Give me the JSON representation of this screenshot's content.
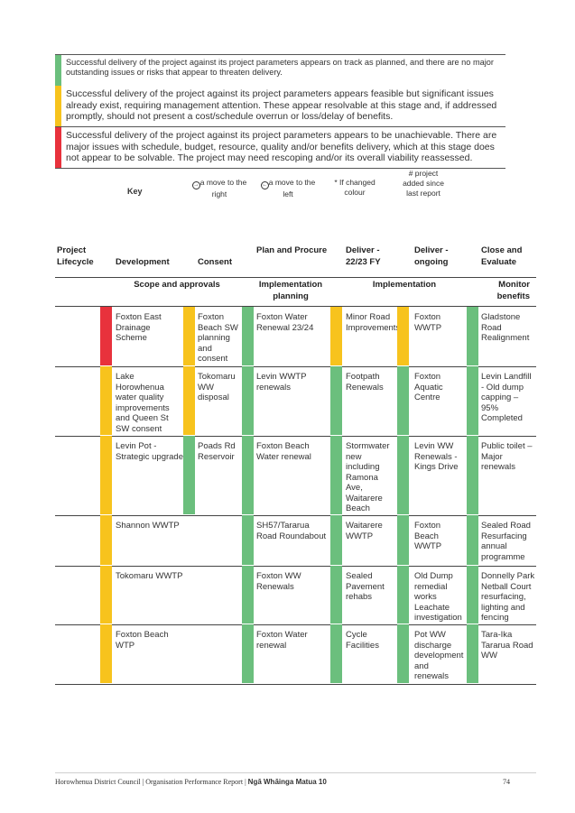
{
  "legend": {
    "green_text": "Successful delivery of the project against its project parameters appears on track as planned, and there are no major outstanding issues or risks that appear to threaten delivery.",
    "amber_text": "Successful delivery of the project against its project parameters appears feasible but significant issues already exist, requiring management attention. These appear resolvable at this stage and, if addressed promptly, should not present a cost/schedule overrun or loss/delay of benefits.",
    "red_text": "Successful delivery of the project against its project parameters appears to be unachievable. There are major issues with schedule, budget, resource, quality and/or benefits delivery, which at this stage does not appear to be solvable. The project may need rescoping and/or its overall viability reassessed.",
    "colors": {
      "green": "#6bbf7d",
      "amber": "#f7c31d",
      "red": "#e8323c"
    }
  },
  "key": {
    "title": "Key",
    "move_right": "a move to the right",
    "move_left": "a move to the left",
    "changed_colour": "* If changed colour",
    "added": "# project added since last report",
    "icon_right": "arrow-right-circle-icon",
    "icon_left": "arrow-left-circle-icon"
  },
  "table": {
    "headers": [
      "Project Lifecycle",
      "Development",
      "Consent",
      "Plan and Procure",
      "Deliver - 22/23 FY",
      "Deliver - ongoing",
      "Close and Evaluate"
    ],
    "subheaders": [
      "Scope and approvals",
      "Implementation planning",
      "Implementation",
      "Monitor benefits"
    ],
    "rows": [
      [
        "Foxton East Drainage Scheme",
        "Foxton Beach SW planning and consent",
        "Foxton Water Renewal 23/24",
        "Minor Road Improvements",
        "Foxton WWTP",
        "Gladstone Road Realignment"
      ],
      [
        "Lake Horowhenua water quality improvements and Queen St SW consent",
        "Tokomaru WW disposal",
        "Levin WWTP renewals",
        "Footpath Renewals",
        "Foxton Aquatic Centre",
        "Levin Landfill - Old dump capping – 95% Completed"
      ],
      [
        "Levin Pot - Strategic upgrade",
        "Poads Rd Reservoir",
        "Foxton Beach Water renewal",
        "Stormwater new including Ramona Ave, Waitarere Beach",
        "Levin WW Renewals - Kings Drive",
        "Public toilet – Major renewals"
      ],
      [
        "Shannon WWTP",
        "",
        "SH57/Tararua Road Roundabout",
        "Waitarere WWTP",
        "Foxton Beach WWTP",
        "Sealed Road Resurfacing annual programme"
      ],
      [
        "Tokomaru WWTP",
        "",
        "Foxton WW Renewals",
        "Sealed Pavement rehabs",
        "Old Dump remedial works Leachate investigation",
        "Donnelly Park Netball Court resurfacing, lighting and fencing"
      ],
      [
        "Foxton Beach WTP",
        "",
        "Foxton Water renewal",
        "Cycle Facilities",
        "Pot WW discharge development and renewals",
        "Tara-Ika Tararua Road WW"
      ]
    ],
    "row_status": [
      [
        "red",
        "amber",
        "green",
        "amber",
        "amber",
        "green"
      ],
      [
        "amber",
        "amber",
        "green",
        "green",
        "green",
        "green"
      ],
      [
        "amber",
        "green",
        "green",
        "green",
        "green",
        "green"
      ],
      [
        "amber",
        "",
        "green",
        "green",
        "green",
        "green"
      ],
      [
        "amber",
        "",
        "green",
        "green",
        "green",
        "green"
      ],
      [
        "amber",
        "",
        "green",
        "green",
        "green",
        "green"
      ]
    ]
  },
  "footer": {
    "text": "Horowhenua District Council | Organisation Performance Report | ",
    "bold": "Ngā Whāinga Matua 10",
    "page": "74"
  }
}
